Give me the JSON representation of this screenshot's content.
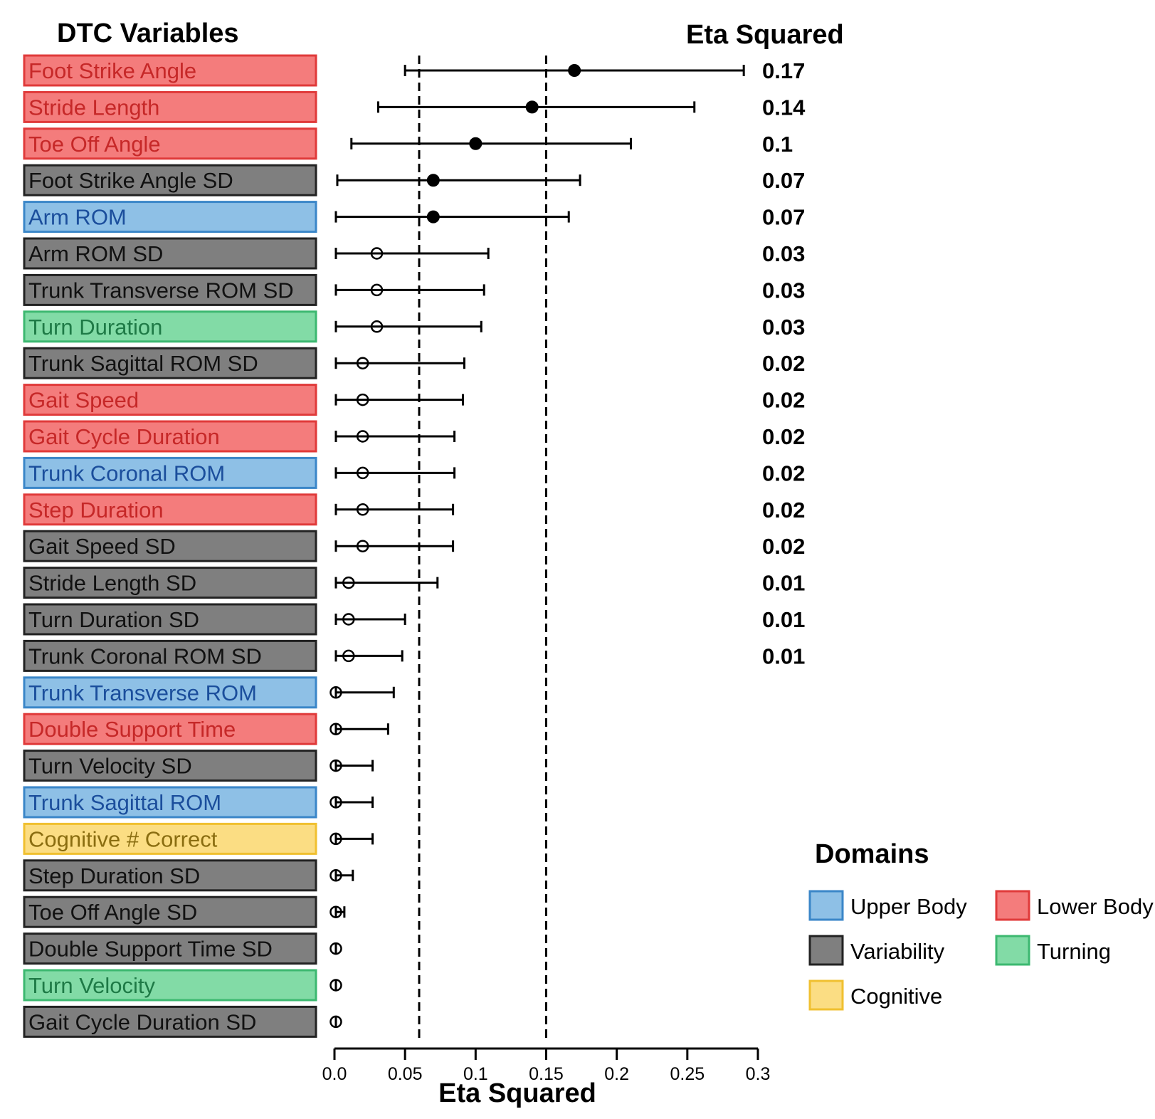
{
  "chart_data": {
    "type": "forest",
    "left_header": "DTC Variables",
    "right_header": "Eta Squared",
    "xlabel": "Eta Squared",
    "xlim": [
      0,
      0.3
    ],
    "x_ticks": [
      "0.0",
      "0.05",
      "0.1",
      "0.15",
      "0.2",
      "0.25",
      "0.3"
    ],
    "x_tick_values": [
      0,
      0.05,
      0.1,
      0.15,
      0.2,
      0.25,
      0.3
    ],
    "reference_lines": [
      0.06,
      0.15
    ],
    "reference_line_style": "dashed",
    "domain_colors": {
      "lower": "#f47c7c",
      "variability": "#7f7f7f",
      "upper": "#8ec0e6",
      "turning": "#82dba6",
      "cognitive": "#fbdd83"
    },
    "domain_text_colors": {
      "lower": "#c62828",
      "variability": "#111111",
      "upper": "#1b4e9c",
      "turning": "#1e7a46",
      "cognitive": "#8a6d10"
    },
    "domain_border_colors": {
      "lower": "#e03a3a",
      "variability": "#222222",
      "upper": "#3a86c8",
      "turning": "#3cb870",
      "cognitive": "#f0c030"
    },
    "rows": [
      {
        "name": "Foot Strike Angle",
        "domain": "lower",
        "value": 0.17,
        "lo": 0.05,
        "hi": 0.29,
        "filled": true,
        "label": "0.17"
      },
      {
        "name": "Stride Length",
        "domain": "lower",
        "value": 0.14,
        "lo": 0.031,
        "hi": 0.255,
        "filled": true,
        "label": "0.14"
      },
      {
        "name": "Toe Off Angle",
        "domain": "lower",
        "value": 0.1,
        "lo": 0.012,
        "hi": 0.21,
        "filled": true,
        "label": "0.1"
      },
      {
        "name": "Foot Strike Angle SD",
        "domain": "variability",
        "value": 0.07,
        "lo": 0.002,
        "hi": 0.174,
        "filled": true,
        "label": "0.07"
      },
      {
        "name": "Arm ROM",
        "domain": "upper",
        "value": 0.07,
        "lo": 0.001,
        "hi": 0.166,
        "filled": true,
        "label": "0.07"
      },
      {
        "name": "Arm ROM SD",
        "domain": "variability",
        "value": 0.03,
        "lo": 0.001,
        "hi": 0.109,
        "filled": false,
        "label": "0.03"
      },
      {
        "name": "Trunk Transverse ROM SD",
        "domain": "variability",
        "value": 0.03,
        "lo": 0.001,
        "hi": 0.106,
        "filled": false,
        "label": "0.03"
      },
      {
        "name": "Turn Duration",
        "domain": "turning",
        "value": 0.03,
        "lo": 0.001,
        "hi": 0.104,
        "filled": false,
        "label": "0.03"
      },
      {
        "name": "Trunk Sagittal ROM SD",
        "domain": "variability",
        "value": 0.02,
        "lo": 0.001,
        "hi": 0.092,
        "filled": false,
        "label": "0.02"
      },
      {
        "name": "Gait Speed",
        "domain": "lower",
        "value": 0.02,
        "lo": 0.001,
        "hi": 0.091,
        "filled": false,
        "label": "0.02"
      },
      {
        "name": "Gait Cycle Duration",
        "domain": "lower",
        "value": 0.02,
        "lo": 0.001,
        "hi": 0.085,
        "filled": false,
        "label": "0.02"
      },
      {
        "name": "Trunk Coronal ROM",
        "domain": "upper",
        "value": 0.02,
        "lo": 0.001,
        "hi": 0.085,
        "filled": false,
        "label": "0.02"
      },
      {
        "name": "Step Duration",
        "domain": "lower",
        "value": 0.02,
        "lo": 0.001,
        "hi": 0.084,
        "filled": false,
        "label": "0.02"
      },
      {
        "name": "Gait Speed SD",
        "domain": "variability",
        "value": 0.02,
        "lo": 0.001,
        "hi": 0.084,
        "filled": false,
        "label": "0.02"
      },
      {
        "name": "Stride Length SD",
        "domain": "variability",
        "value": 0.01,
        "lo": 0.001,
        "hi": 0.073,
        "filled": false,
        "label": "0.01"
      },
      {
        "name": "Turn Duration SD",
        "domain": "variability",
        "value": 0.01,
        "lo": 0.001,
        "hi": 0.05,
        "filled": false,
        "label": "0.01"
      },
      {
        "name": "Trunk Coronal ROM SD",
        "domain": "variability",
        "value": 0.01,
        "lo": 0.001,
        "hi": 0.048,
        "filled": false,
        "label": "0.01"
      },
      {
        "name": "Trunk Transverse ROM",
        "domain": "upper",
        "value": 0.001,
        "lo": 0.001,
        "hi": 0.042,
        "filled": false,
        "label": ""
      },
      {
        "name": "Double Support Time",
        "domain": "lower",
        "value": 0.001,
        "lo": 0.001,
        "hi": 0.038,
        "filled": false,
        "label": ""
      },
      {
        "name": "Turn Velocity SD",
        "domain": "variability",
        "value": 0.001,
        "lo": 0.001,
        "hi": 0.027,
        "filled": false,
        "label": ""
      },
      {
        "name": "Trunk Sagittal ROM",
        "domain": "upper",
        "value": 0.001,
        "lo": 0.001,
        "hi": 0.027,
        "filled": false,
        "label": ""
      },
      {
        "name": "Cognitive # Correct",
        "domain": "cognitive",
        "value": 0.001,
        "lo": 0.001,
        "hi": 0.027,
        "filled": false,
        "label": ""
      },
      {
        "name": "Step Duration SD",
        "domain": "variability",
        "value": 0.001,
        "lo": 0.001,
        "hi": 0.013,
        "filled": false,
        "label": ""
      },
      {
        "name": "Toe Off Angle SD",
        "domain": "variability",
        "value": 0.001,
        "lo": 0.001,
        "hi": 0.007,
        "filled": false,
        "label": ""
      },
      {
        "name": "Double Support Time SD",
        "domain": "variability",
        "value": 0.001,
        "lo": 0.001,
        "hi": 0.001,
        "filled": false,
        "label": ""
      },
      {
        "name": "Turn Velocity",
        "domain": "turning",
        "value": 0.001,
        "lo": 0.001,
        "hi": 0.001,
        "filled": false,
        "label": ""
      },
      {
        "name": "Gait Cycle Duration SD",
        "domain": "variability",
        "value": 0.001,
        "lo": 0.001,
        "hi": 0.001,
        "filled": false,
        "label": ""
      }
    ],
    "legend": {
      "title": "Domains",
      "items": [
        {
          "key": "upper",
          "label": "Upper Body"
        },
        {
          "key": "lower",
          "label": "Lower Body"
        },
        {
          "key": "variability",
          "label": "Variability"
        },
        {
          "key": "turning",
          "label": "Turning"
        },
        {
          "key": "cognitive",
          "label": "Cognitive"
        }
      ]
    }
  }
}
